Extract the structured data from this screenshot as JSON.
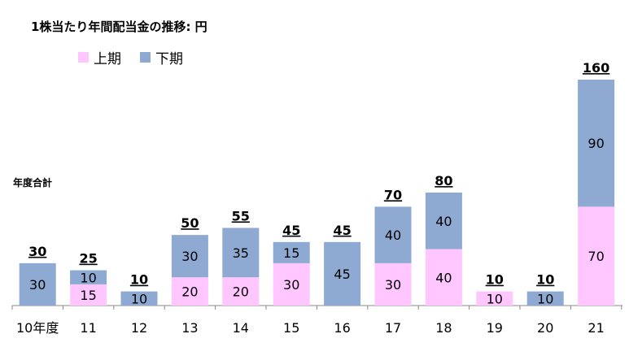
{
  "chart_data": {
    "type": "bar",
    "stacked": true,
    "title": "1株当たり年間配当金の推移: 円",
    "total_label_caption": "年度合計",
    "categories": [
      "10年度",
      "11",
      "12",
      "13",
      "14",
      "15",
      "16",
      "17",
      "18",
      "19",
      "20",
      "21"
    ],
    "series": [
      {
        "name": "上期",
        "color": "#ffc6ff",
        "values": [
          0,
          15,
          0,
          20,
          20,
          30,
          0,
          30,
          40,
          10,
          0,
          70
        ]
      },
      {
        "name": "下期",
        "color": "#8eaad2",
        "values": [
          30,
          10,
          10,
          30,
          35,
          15,
          45,
          40,
          40,
          0,
          10,
          90
        ]
      }
    ],
    "totals": [
      30,
      25,
      10,
      50,
      55,
      45,
      45,
      70,
      80,
      10,
      10,
      160
    ],
    "ylim": [
      0,
      160
    ],
    "grid": false,
    "legend_position": "top-left"
  }
}
